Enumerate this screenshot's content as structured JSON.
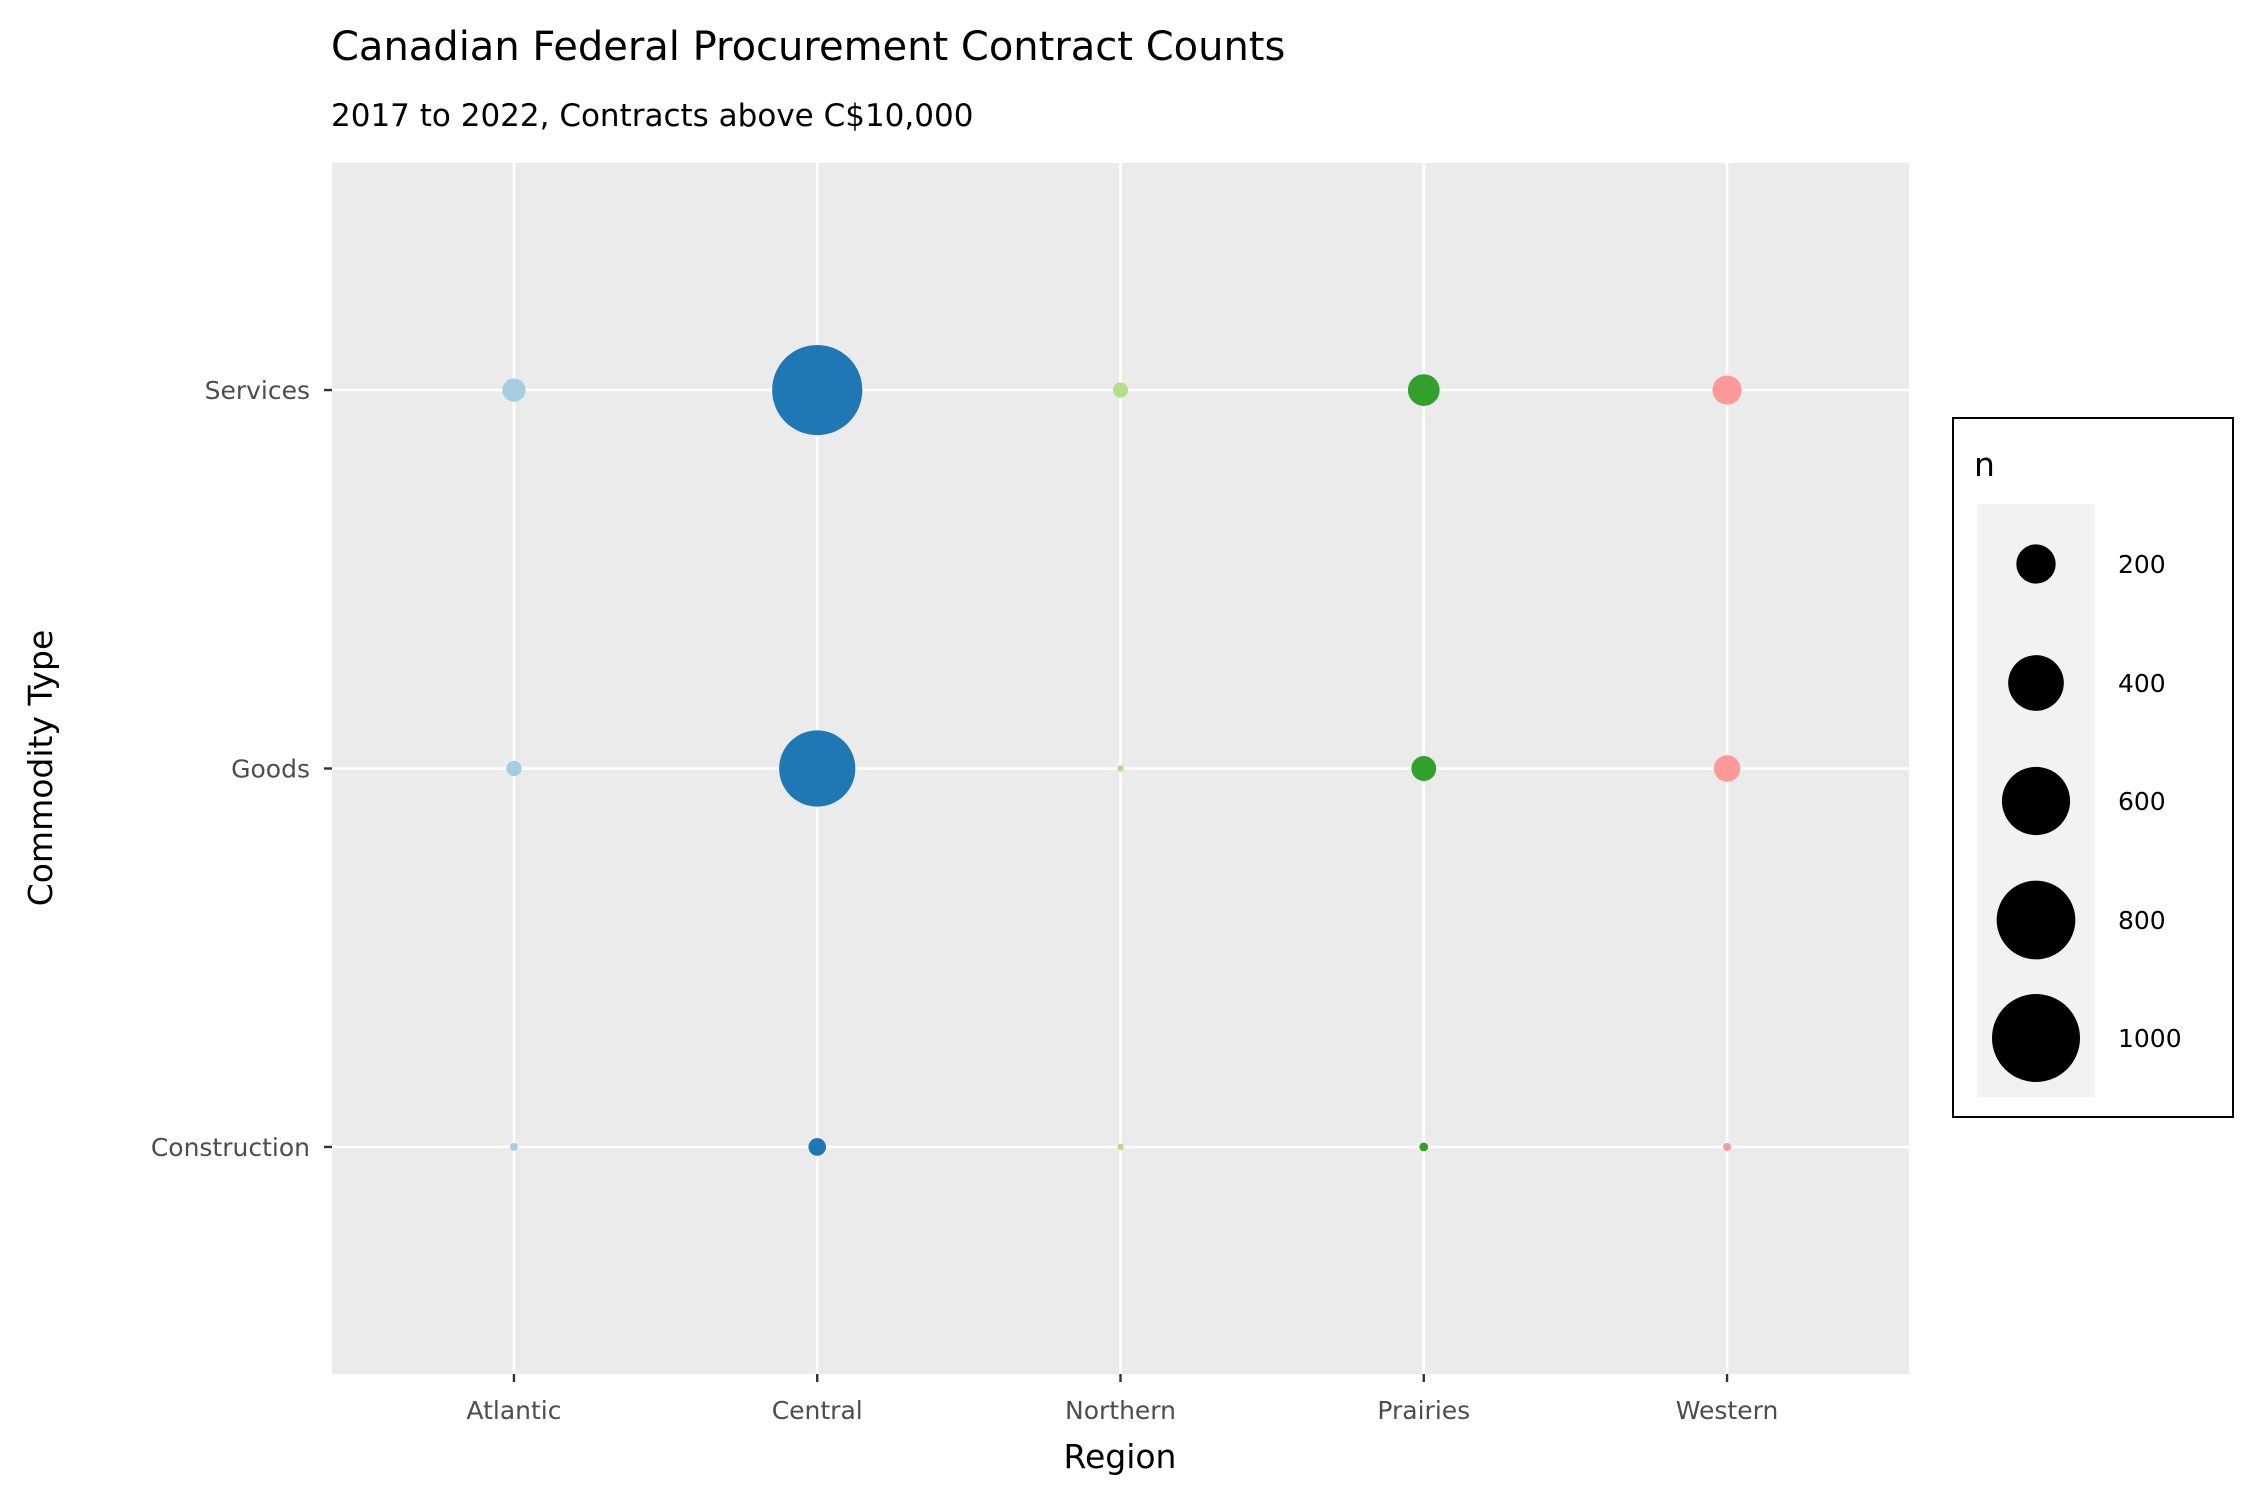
{
  "chart_data": {
    "type": "scatter",
    "title": "Canadian Federal Procurement Contract Counts",
    "subtitle": "2017 to 2022, Contracts above C$10,000",
    "xlabel": "Region",
    "ylabel": "Commodity Type",
    "x_categories": [
      "Atlantic",
      "Central",
      "Northern",
      "Prairies",
      "Western"
    ],
    "y_categories": [
      "Construction",
      "Goods",
      "Services"
    ],
    "colors": {
      "Atlantic": "#a6cee3",
      "Central": "#1f78b4",
      "Northern": "#b2df8a",
      "Prairies": "#33a02c",
      "Western": "#fb9a99"
    },
    "points": [
      {
        "region": "Atlantic",
        "commodity": "Services",
        "n": 70
      },
      {
        "region": "Atlantic",
        "commodity": "Goods",
        "n": 30
      },
      {
        "region": "Atlantic",
        "commodity": "Construction",
        "n": 8
      },
      {
        "region": "Central",
        "commodity": "Services",
        "n": 1050
      },
      {
        "region": "Central",
        "commodity": "Goods",
        "n": 750
      },
      {
        "region": "Central",
        "commodity": "Construction",
        "n": 40
      },
      {
        "region": "Northern",
        "commodity": "Services",
        "n": 30
      },
      {
        "region": "Northern",
        "commodity": "Goods",
        "n": 5
      },
      {
        "region": "Northern",
        "commodity": "Construction",
        "n": 5
      },
      {
        "region": "Prairies",
        "commodity": "Services",
        "n": 130
      },
      {
        "region": "Prairies",
        "commodity": "Goods",
        "n": 80
      },
      {
        "region": "Prairies",
        "commodity": "Construction",
        "n": 10
      },
      {
        "region": "Western",
        "commodity": "Services",
        "n": 110
      },
      {
        "region": "Western",
        "commodity": "Goods",
        "n": 90
      },
      {
        "region": "Western",
        "commodity": "Construction",
        "n": 8
      }
    ],
    "size_legend": {
      "title": "n",
      "breaks": [
        200,
        400,
        600,
        800,
        1000
      ],
      "labels": [
        "200",
        "400",
        "600",
        "800",
        "1000"
      ]
    },
    "grid": true,
    "legend_position": "right",
    "panel_background": "#ebebeb"
  }
}
